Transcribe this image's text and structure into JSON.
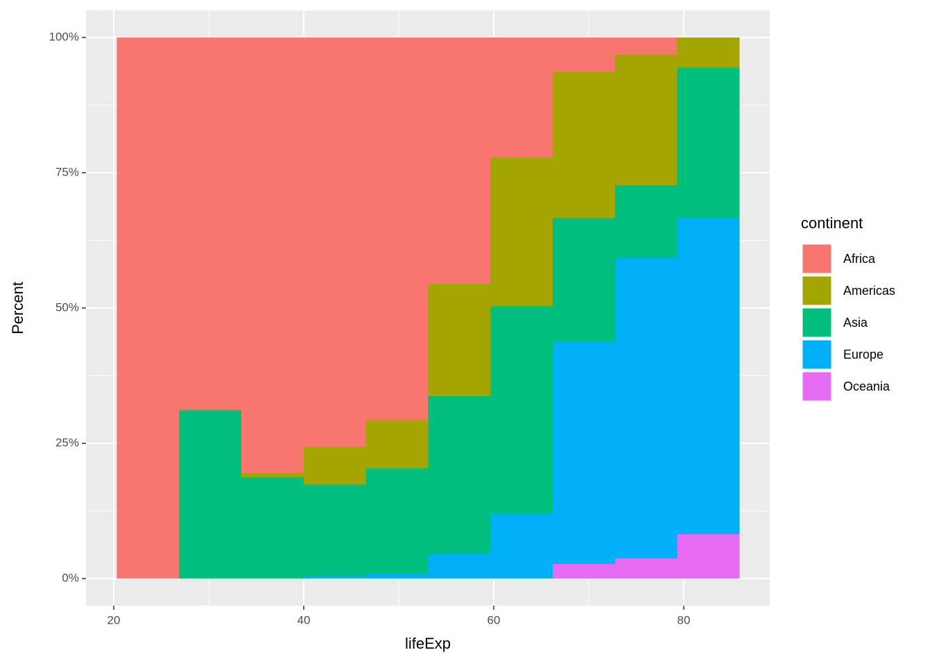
{
  "chart_data": {
    "type": "histogram",
    "x_label": "lifeExp",
    "y_label": "Percent",
    "legend_title": "continent",
    "bins": [
      20.32,
      26.88,
      33.43,
      39.99,
      46.54,
      53.1,
      59.66,
      66.21,
      72.77,
      79.32,
      85.88
    ],
    "series": [
      {
        "name": "Oceania",
        "color": "#E76BF3",
        "values": [
          0,
          0,
          0,
          0,
          0,
          0,
          0,
          2.7,
          3.7,
          8.2
        ]
      },
      {
        "name": "Europe",
        "color": "#00B0F6",
        "values": [
          0,
          0,
          0,
          0.4,
          0.9,
          4.5,
          11.9,
          41.1,
          55.5,
          58.4
        ]
      },
      {
        "name": "Asia",
        "color": "#00BF7D",
        "values": [
          0,
          31.1,
          18.7,
          17.0,
          19.5,
          29.2,
          38.4,
          22.8,
          13.5,
          27.8
        ]
      },
      {
        "name": "Americas",
        "color": "#A3A500",
        "values": [
          0,
          0,
          0.8,
          6.9,
          8.9,
          20.8,
          27.5,
          27.0,
          24.1,
          5.6
        ]
      },
      {
        "name": "Africa",
        "color": "#F8766D",
        "values": [
          100,
          68.9,
          80.5,
          75.7,
          70.7,
          45.5,
          22.2,
          6.4,
          3.2,
          0
        ]
      }
    ],
    "legend_order": [
      4,
      3,
      2,
      1,
      0
    ],
    "xlim": [
      17.08,
      89.05
    ],
    "ylim": [
      -5,
      105
    ],
    "xticks": [
      20,
      40,
      60,
      80
    ],
    "yticks": [
      {
        "value": 0,
        "label": "0%"
      },
      {
        "value": 25,
        "label": "25%"
      },
      {
        "value": 50,
        "label": "50%"
      },
      {
        "value": 75,
        "label": "75%"
      },
      {
        "value": 100,
        "label": "100%"
      }
    ],
    "grid": true
  }
}
